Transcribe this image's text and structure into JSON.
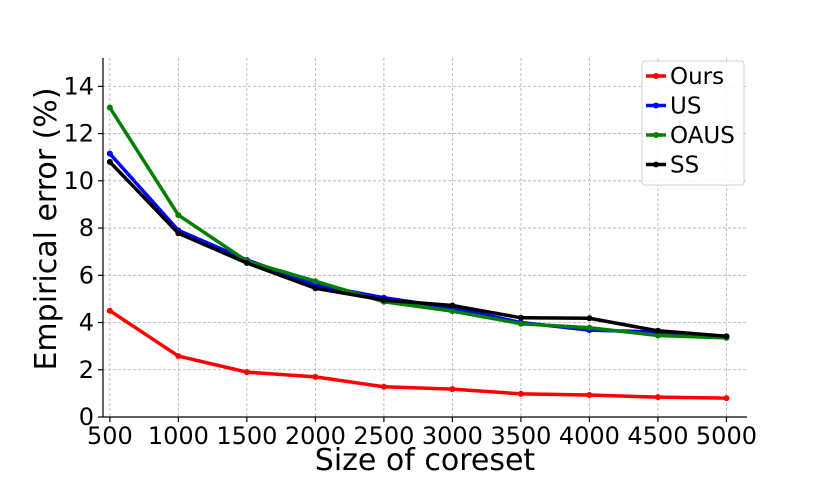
{
  "chart_data": {
    "type": "line",
    "title": "",
    "xlabel": "Size of coreset",
    "ylabel": "Empirical error (%)",
    "x": [
      500,
      1000,
      1500,
      2000,
      2500,
      3000,
      3500,
      4000,
      4500,
      5000
    ],
    "xticks": [
      500,
      1000,
      1500,
      2000,
      2500,
      3000,
      3500,
      4000,
      4500,
      5000
    ],
    "yticks": [
      0,
      2,
      4,
      6,
      8,
      10,
      12,
      14
    ],
    "xlim": [
      450,
      5150
    ],
    "ylim": [
      0,
      15.2
    ],
    "grid": true,
    "legend_position": "top-right",
    "series": [
      {
        "name": "Ours",
        "color": "#ff0000",
        "values": [
          4.5,
          2.58,
          1.9,
          1.7,
          1.28,
          1.18,
          0.98,
          0.93,
          0.84,
          0.8
        ]
      },
      {
        "name": "US",
        "color": "#0000ff",
        "values": [
          11.15,
          7.9,
          6.65,
          5.6,
          5.05,
          4.62,
          4.0,
          3.68,
          3.6,
          3.4
        ]
      },
      {
        "name": "OAUS",
        "color": "#008000",
        "values": [
          13.1,
          8.55,
          6.6,
          5.75,
          4.88,
          4.48,
          3.95,
          3.78,
          3.45,
          3.35
        ]
      },
      {
        "name": "SS",
        "color": "#000000",
        "values": [
          10.8,
          7.78,
          6.52,
          5.45,
          4.95,
          4.72,
          4.2,
          4.18,
          3.65,
          3.42
        ]
      }
    ]
  }
}
